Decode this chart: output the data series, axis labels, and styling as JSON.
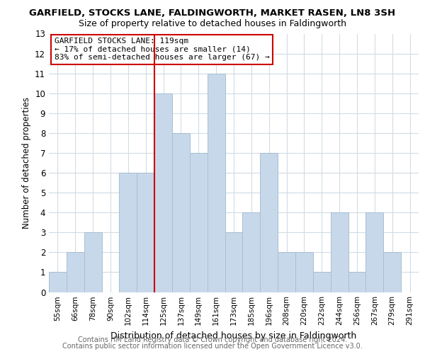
{
  "title": "GARFIELD, STOCKS LANE, FALDINGWORTH, MARKET RASEN, LN8 3SH",
  "subtitle": "Size of property relative to detached houses in Faldingworth",
  "xlabel": "Distribution of detached houses by size in Faldingworth",
  "ylabel": "Number of detached properties",
  "bin_labels": [
    "55sqm",
    "66sqm",
    "78sqm",
    "90sqm",
    "102sqm",
    "114sqm",
    "125sqm",
    "137sqm",
    "149sqm",
    "161sqm",
    "173sqm",
    "185sqm",
    "196sqm",
    "208sqm",
    "220sqm",
    "232sqm",
    "244sqm",
    "256sqm",
    "267sqm",
    "279sqm",
    "291sqm"
  ],
  "bar_heights": [
    1,
    2,
    3,
    0,
    6,
    6,
    10,
    8,
    7,
    11,
    3,
    4,
    7,
    2,
    2,
    1,
    4,
    1,
    4,
    2,
    0
  ],
  "bar_color": "#c8d8eb",
  "bar_edgecolor": "#a8bfd0",
  "vline_x_index": 5.5,
  "vline_color": "#cc0000",
  "annotation_text": "GARFIELD STOCKS LANE: 119sqm\n← 17% of detached houses are smaller (14)\n83% of semi-detached houses are larger (67) →",
  "annotation_box_edgecolor": "#cc0000",
  "ylim": [
    0,
    13
  ],
  "yticks": [
    0,
    1,
    2,
    3,
    4,
    5,
    6,
    7,
    8,
    9,
    10,
    11,
    12,
    13
  ],
  "footer1": "Contains HM Land Registry data © Crown copyright and database right 2024.",
  "footer2": "Contains public sector information licensed under the Open Government Licence v3.0.",
  "background_color": "#ffffff",
  "grid_color": "#d0dce6"
}
